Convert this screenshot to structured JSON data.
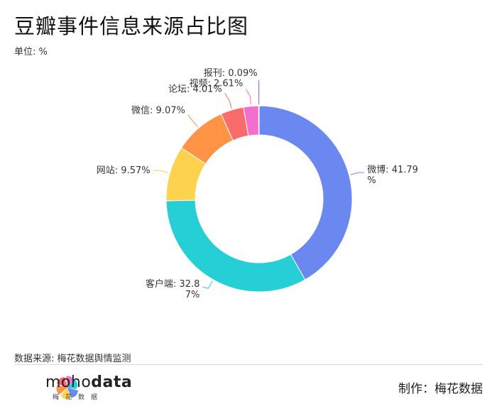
{
  "header": {
    "title": "豆瓣事件信息来源占比图",
    "unit": "单位: %"
  },
  "chart_data": {
    "type": "pie",
    "donut": true,
    "slices": [
      {
        "label": "微博",
        "value": 41.79,
        "color": "#6b87f0",
        "text_lines": [
          "微博: 41.79",
          "%"
        ]
      },
      {
        "label": "客户端",
        "value": 32.87,
        "color": "#26cfd6",
        "text_lines": [
          "客户端: 32.8",
          "7%"
        ]
      },
      {
        "label": "网站",
        "value": 9.57,
        "color": "#fdd24c",
        "text_lines": [
          "网站: 9.57%"
        ]
      },
      {
        "label": "微信",
        "value": 9.07,
        "color": "#ff9446",
        "text_lines": [
          "微信: 9.07%"
        ]
      },
      {
        "label": "论坛",
        "value": 4.01,
        "color": "#fa6b6b",
        "text_lines": [
          "论坛: 4.01%"
        ]
      },
      {
        "label": "视频",
        "value": 2.61,
        "color": "#f46fcb",
        "text_lines": [
          "视频: 2.61%"
        ]
      },
      {
        "label": "报刊",
        "value": 0.09,
        "color": "#9b59d9",
        "text_lines": [
          "报刊: 0.09%"
        ]
      }
    ]
  },
  "footer": {
    "source": "数据来源: 梅花数据舆情监测",
    "brand_prefix": "moho",
    "brand_suffix": "data",
    "brand_sub": "梅花数据",
    "credit": "制作：梅花数据"
  }
}
